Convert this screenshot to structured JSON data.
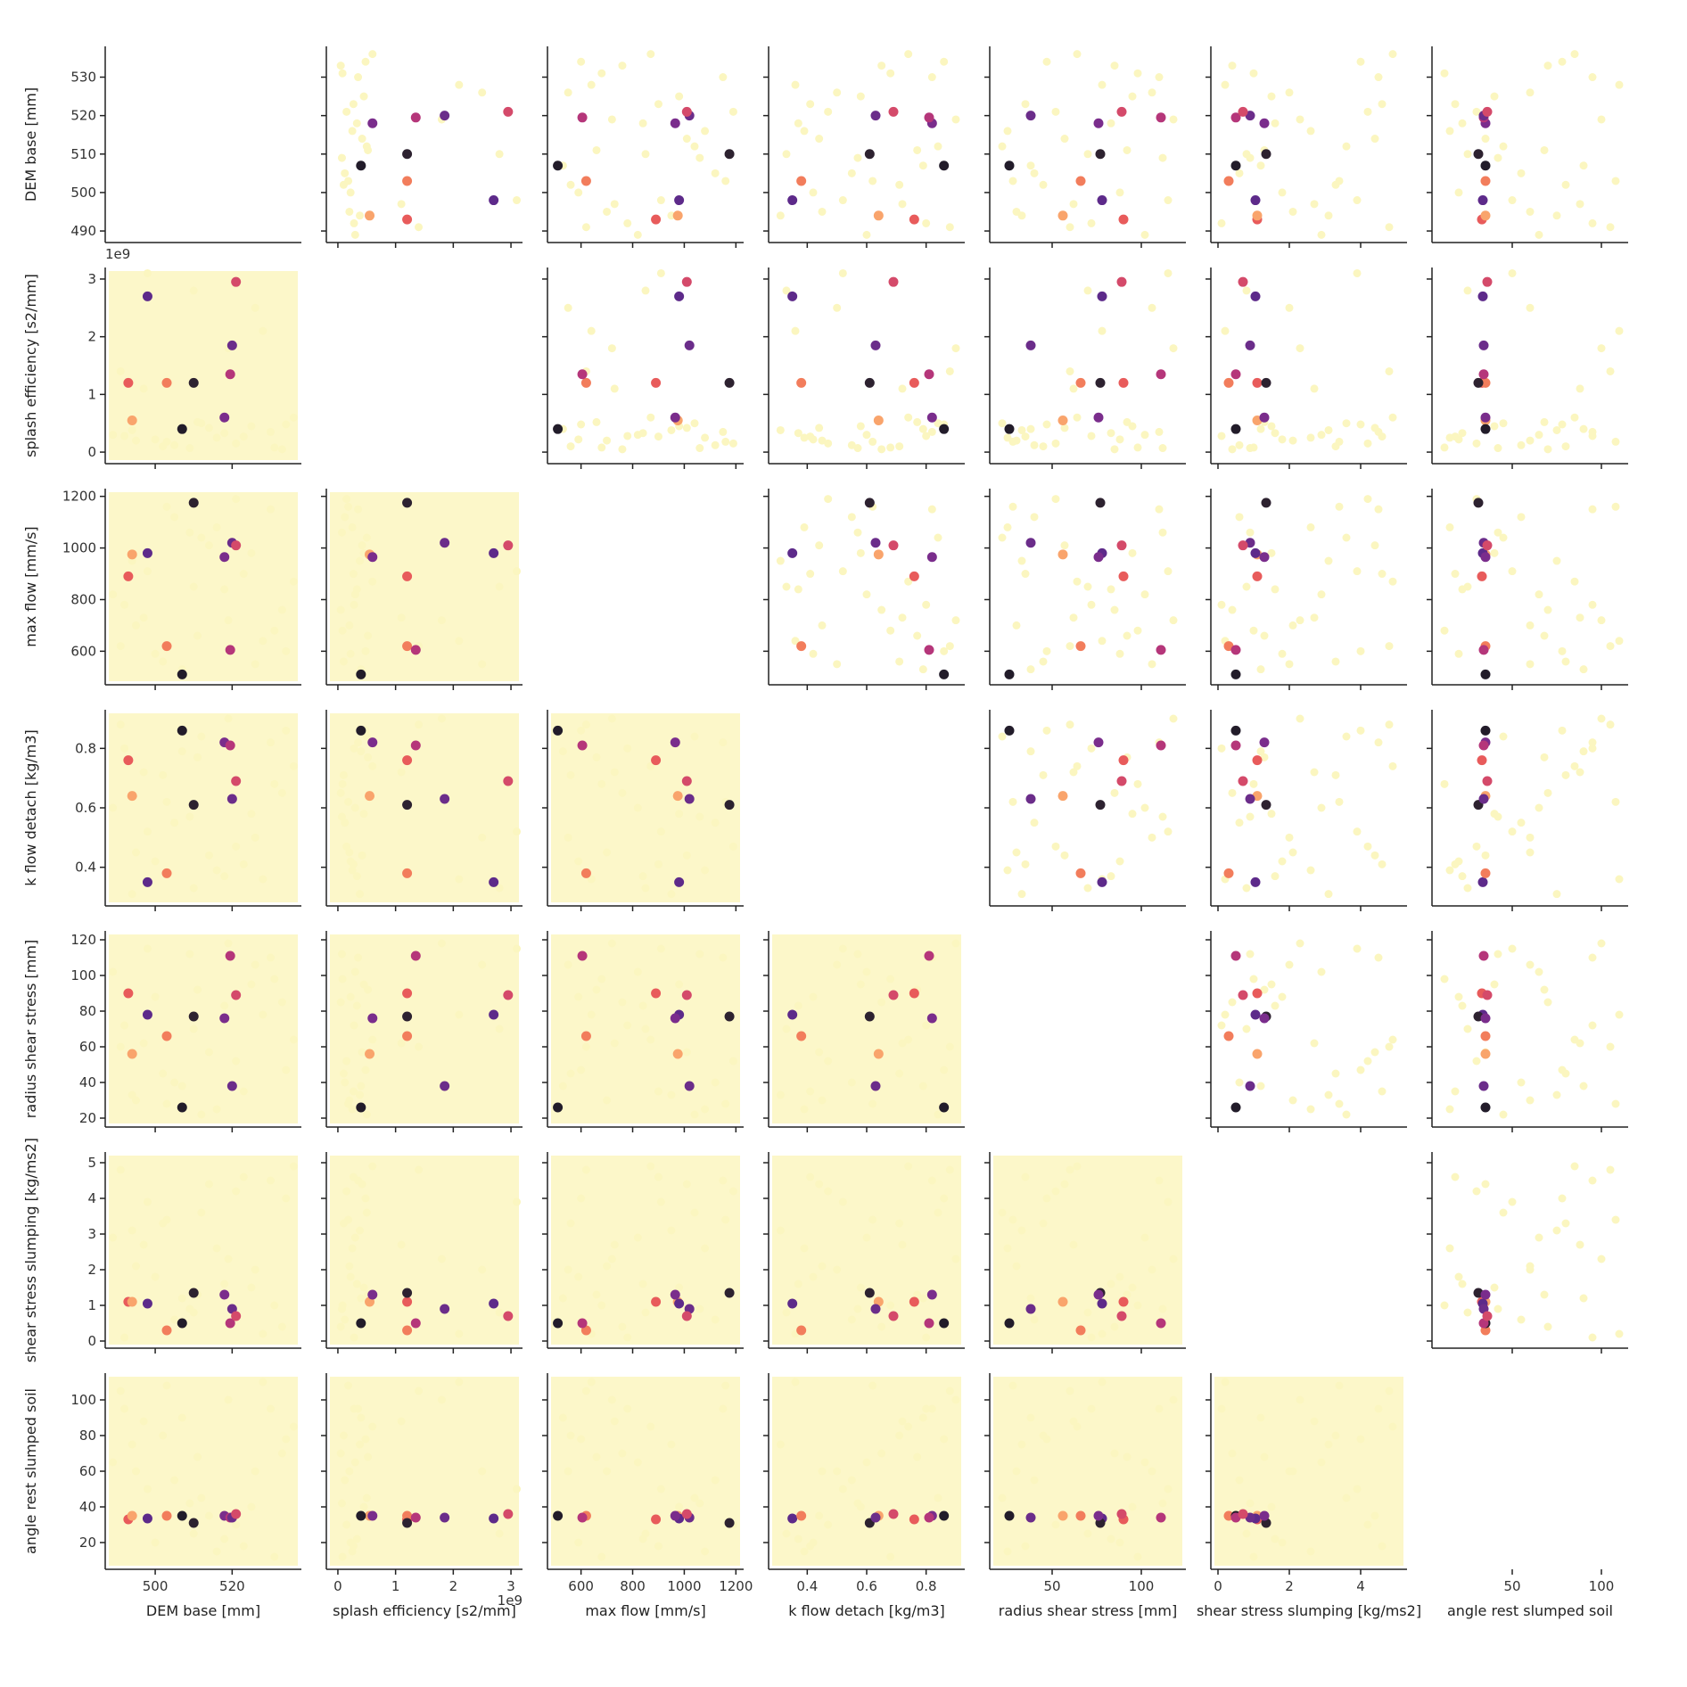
{
  "chart_data": {
    "type": "pairplot",
    "variables": [
      {
        "name": "DEM base [mm]",
        "lim": [
          487,
          538
        ],
        "xticks": [
          500,
          520
        ],
        "yticks": [
          490,
          500,
          510,
          520,
          530
        ]
      },
      {
        "name": "splash efficiency [s2/mm]",
        "offset_label": "1e9",
        "lim": [
          -0.2,
          3.2
        ],
        "xticks": [
          0,
          1,
          2,
          3
        ],
        "yticks": [
          0,
          1,
          2,
          3
        ]
      },
      {
        "name": "max flow [mm/s]",
        "lim": [
          470,
          1230
        ],
        "xticks": [
          600,
          800,
          1000,
          1200
        ],
        "yticks": [
          600,
          800,
          1000,
          1200
        ]
      },
      {
        "name": "k flow detach [kg/m3]",
        "lim": [
          0.27,
          0.93
        ],
        "xticks": [
          0.4,
          0.6,
          0.8
        ],
        "yticks": [
          0.4,
          0.6,
          0.8
        ]
      },
      {
        "name": "radius shear stress [mm]",
        "lim": [
          15,
          125
        ],
        "xticks": [
          50,
          100
        ],
        "yticks": [
          20,
          40,
          60,
          80,
          100,
          120
        ]
      },
      {
        "name": "shear stress slumping [kg/ms2]",
        "lim": [
          -0.2,
          5.3
        ],
        "xticks": [
          0,
          2,
          4
        ],
        "yticks": [
          0,
          1,
          2,
          3,
          4,
          5
        ]
      },
      {
        "name": "angle rest slumped soil",
        "lim": [
          5,
          115
        ],
        "xticks": [
          50,
          100
        ],
        "yticks": [
          20,
          40,
          60,
          80,
          100
        ]
      }
    ],
    "background_color": "#fbf6c0",
    "background": [
      [
        495,
        0.2,
        700,
        0.45,
        30,
        2.1,
        60
      ],
      [
        530,
        0.35,
        1150,
        0.82,
        110,
        4.5,
        95
      ],
      [
        510,
        2.8,
        850,
        0.33,
        70,
        0.8,
        25
      ],
      [
        502,
        0.1,
        560,
        0.71,
        45,
        3.3,
        80
      ],
      [
        525,
        0.45,
        980,
        0.58,
        95,
        1.5,
        40
      ],
      [
        491,
        1.4,
        620,
        0.88,
        60,
        4.8,
        105
      ],
      [
        516,
        0.25,
        1080,
        0.39,
        25,
        2.6,
        15
      ],
      [
        533,
        0.05,
        760,
        0.65,
        85,
        0.4,
        70
      ],
      [
        498,
        3.1,
        910,
        0.52,
        115,
        3.9,
        50
      ],
      [
        507,
        0.4,
        530,
        0.79,
        38,
        1.2,
        90
      ],
      [
        521,
        0.15,
        1190,
        0.47,
        52,
        4.2,
        30
      ],
      [
        489,
        0.3,
        820,
        0.6,
        102,
        2.9,
        65
      ],
      [
        528,
        2.1,
        640,
        0.36,
        78,
        0.2,
        110
      ],
      [
        512,
        0.5,
        1040,
        0.84,
        22,
        3.6,
        45
      ],
      [
        500,
        0.22,
        590,
        0.42,
        88,
        1.8,
        20
      ],
      [
        536,
        0.6,
        870,
        0.74,
        64,
        4.9,
        85
      ],
      [
        505,
        0.12,
        1120,
        0.55,
        40,
        0.6,
        55
      ],
      [
        519,
        1.8,
        720,
        0.9,
        118,
        2.3,
        100
      ],
      [
        494,
        0.38,
        950,
        0.31,
        33,
        3.1,
        75
      ],
      [
        531,
        0.08,
        680,
        0.68,
        98,
        1.0,
        12
      ],
      [
        514,
        0.42,
        1010,
        0.44,
        57,
        4.4,
        35
      ],
      [
        492,
        0.28,
        780,
        0.8,
        72,
        0.1,
        95
      ],
      [
        526,
        2.5,
        550,
        0.5,
        106,
        2.0,
        60
      ],
      [
        503,
        0.18,
        1160,
        0.62,
        28,
        3.4,
        108
      ],
      [
        518,
        0.33,
        840,
        0.37,
        83,
        1.6,
        22
      ],
      [
        534,
        0.48,
        600,
        0.86,
        47,
        4.0,
        78
      ],
      [
        509,
        0.07,
        1060,
        0.57,
        112,
        0.9,
        42
      ],
      [
        497,
        1.1,
        730,
        0.72,
        62,
        2.7,
        88
      ],
      [
        523,
        0.27,
        900,
        0.41,
        35,
        4.6,
        18
      ],
      [
        511,
        0.52,
        660,
        0.77,
        92,
        1.3,
        68
      ]
    ],
    "samples": [
      {
        "color": "#e85b5b",
        "values": [
          493,
          1.2,
          890,
          0.76,
          90,
          1.1,
          33
        ]
      },
      {
        "color": "#f9a46c",
        "values": [
          494,
          0.55,
          975,
          0.64,
          56,
          1.1,
          35
        ]
      },
      {
        "color": "#5d2a8a",
        "values": [
          498,
          2.7,
          980,
          0.35,
          78,
          1.05,
          33.5
        ]
      },
      {
        "color": "#f27d5c",
        "values": [
          503,
          1.2,
          620,
          0.38,
          66,
          0.3,
          35
        ]
      },
      {
        "color": "#221c2a",
        "values": [
          507,
          0.4,
          510,
          0.86,
          26,
          0.5,
          35
        ]
      },
      {
        "color": "#2d2230",
        "values": [
          510,
          1.2,
          1175,
          0.61,
          77,
          1.35,
          31
        ]
      },
      {
        "color": "#7a2d8c",
        "values": [
          518,
          0.6,
          965,
          0.82,
          76,
          1.3,
          35
        ]
      },
      {
        "color": "#b5367a",
        "values": [
          519.5,
          1.35,
          605,
          0.81,
          111,
          0.5,
          34
        ]
      },
      {
        "color": "#6b2d8a",
        "values": [
          520,
          1.85,
          1020,
          0.63,
          38,
          0.9,
          34
        ]
      },
      {
        "color": "#d44a6a",
        "values": [
          521,
          2.95,
          1010,
          0.69,
          89,
          0.7,
          36
        ]
      }
    ]
  }
}
